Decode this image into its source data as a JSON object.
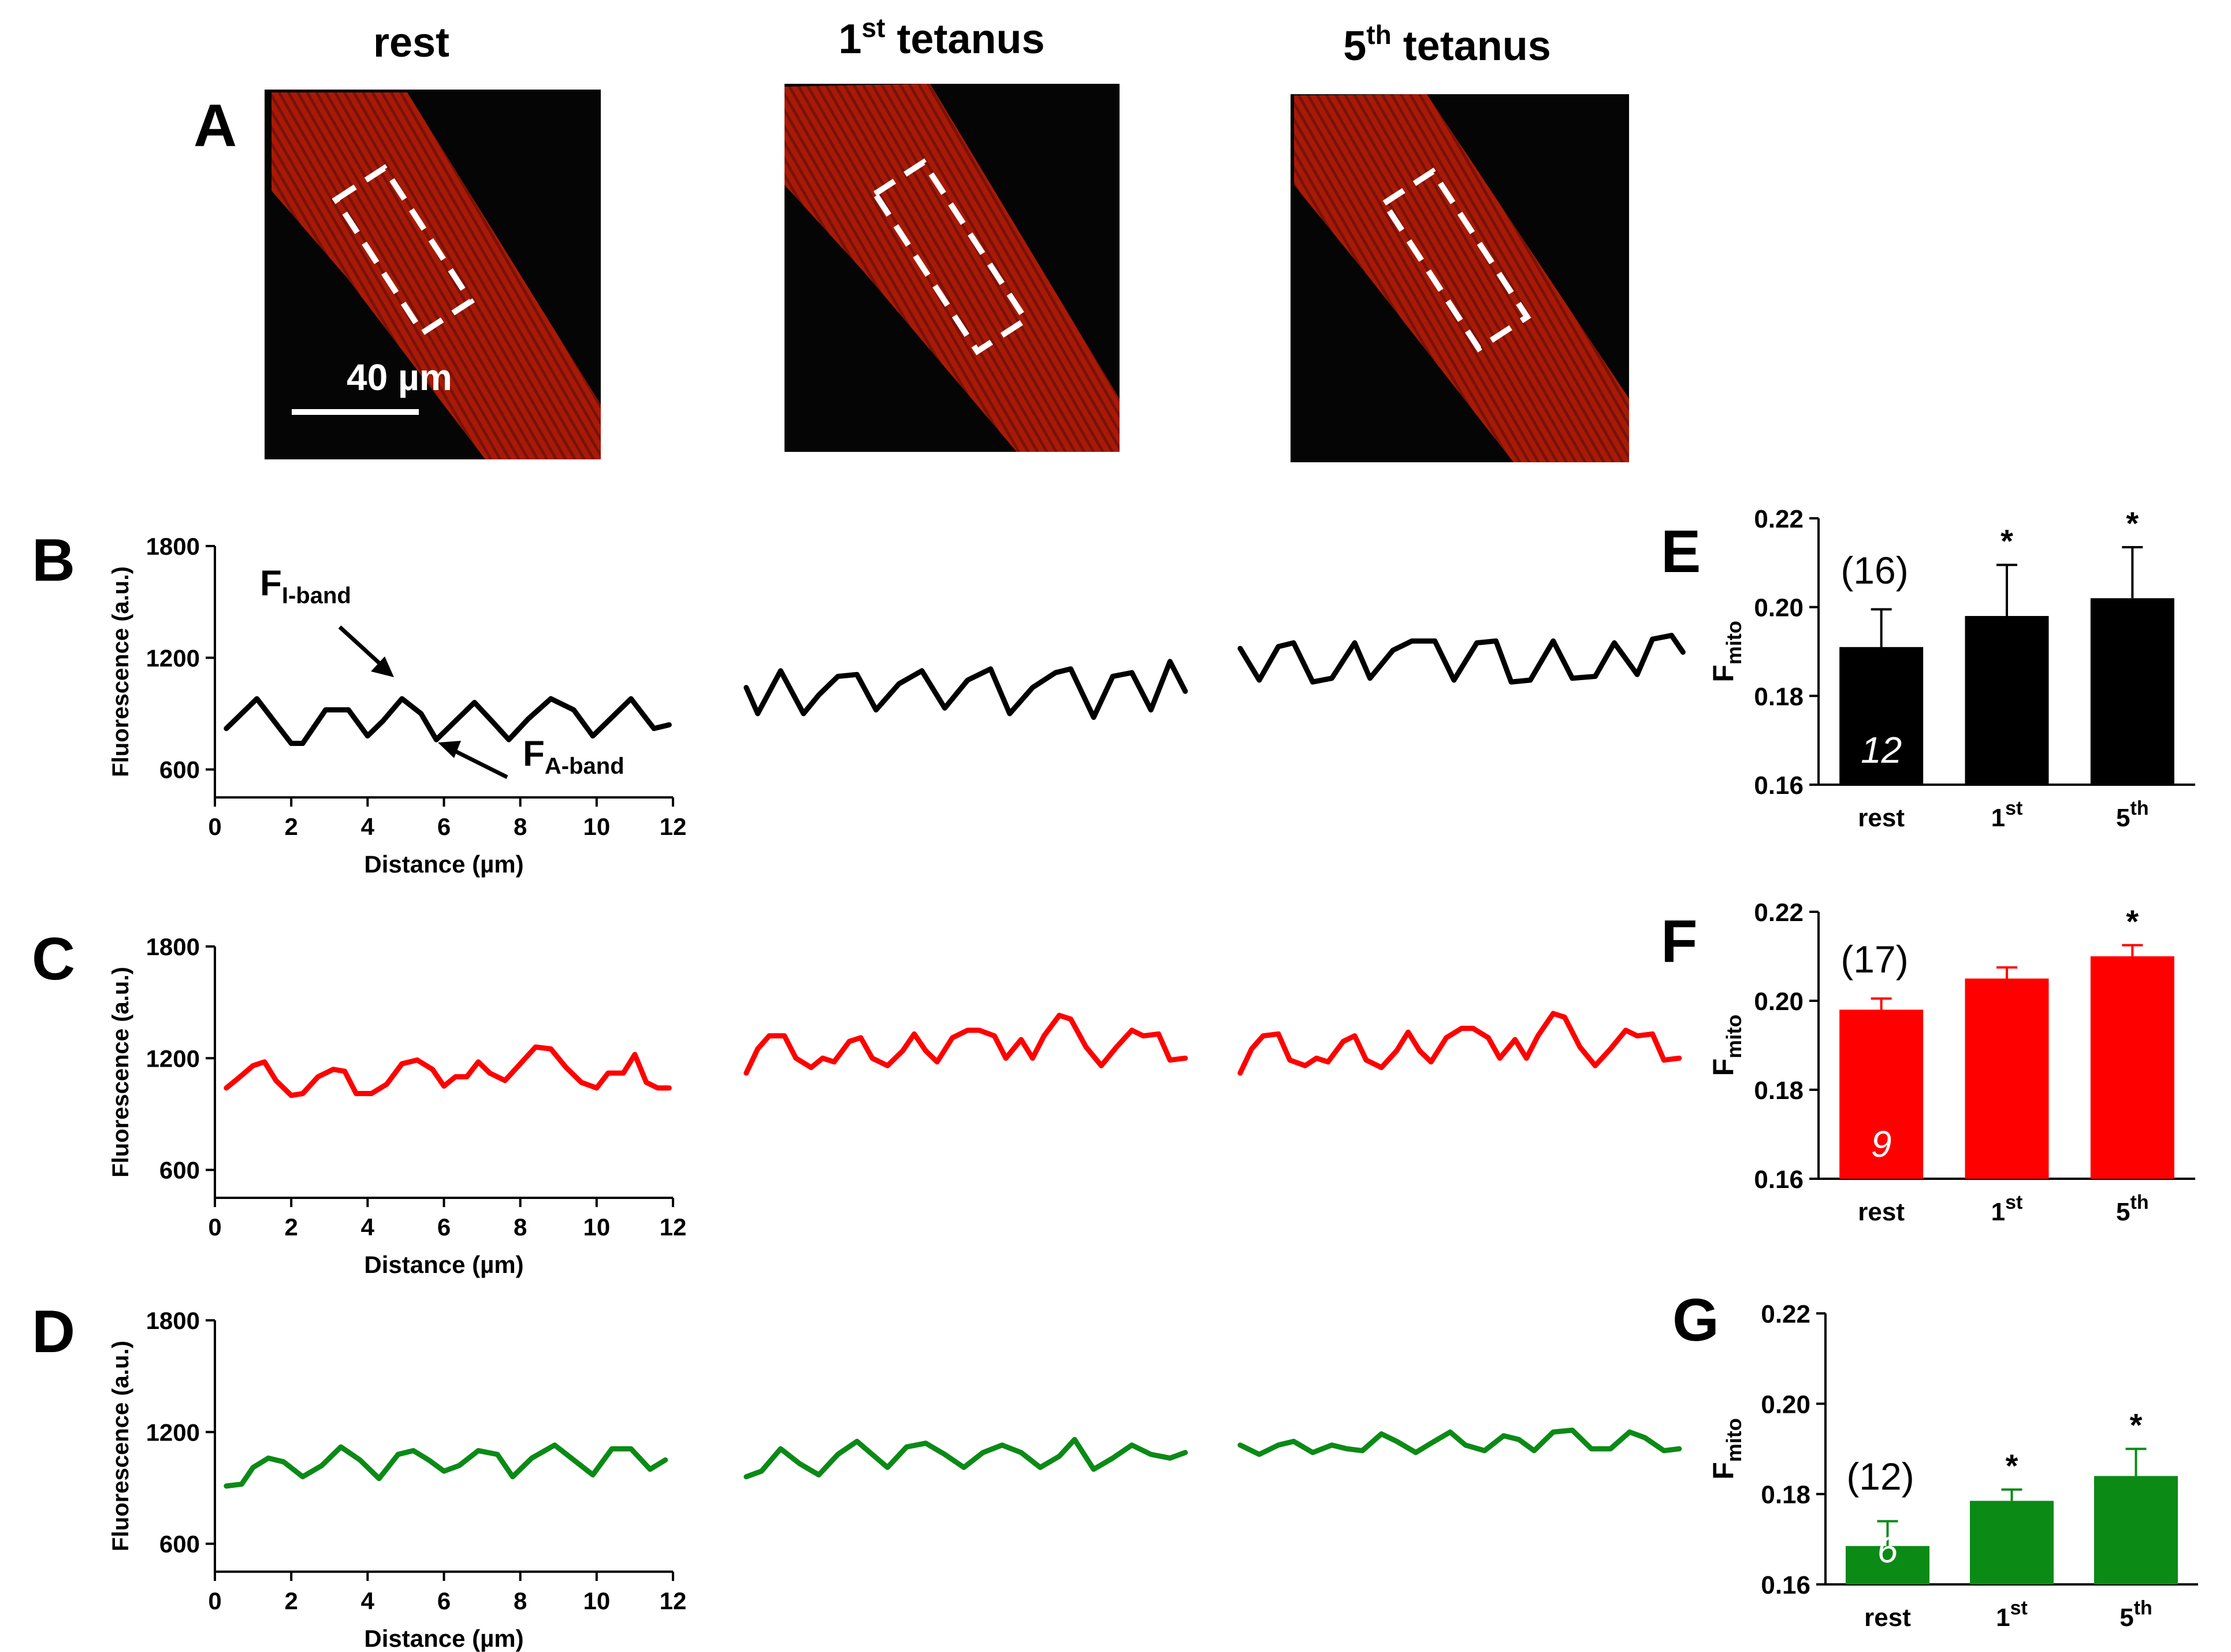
{
  "panel_labels": {
    "A": "A",
    "B": "B",
    "C": "C",
    "D": "D",
    "E": "E",
    "F": "F",
    "G": "G"
  },
  "images": [
    {
      "title": "rest",
      "title_sup": ""
    },
    {
      "title": "1",
      "title_sup": "st",
      "title_rest": " tetanus"
    },
    {
      "title": "5",
      "title_sup": "th",
      "title_rest": " tetanus"
    }
  ],
  "scale_bar_label": "40 µm",
  "annotations": {
    "i_band_main": "F",
    "i_band_sub": "I-band",
    "a_band_main": "F",
    "a_band_sub": "A-band"
  },
  "colors": {
    "black": "#000000",
    "red": "#ff0000",
    "green": "#0b8a16",
    "fiber": "#a81a08",
    "bg_dark": "#050505"
  },
  "chart_data": [
    {
      "type": "line",
      "panel": "B",
      "color": "black",
      "title": "",
      "xlabel": "Distance (µm)",
      "ylabel": "Fluorescence (a.u.)",
      "xlim": [
        0,
        12
      ],
      "ylim": [
        450,
        1800
      ],
      "xticks": [
        0,
        2,
        4,
        6,
        8,
        10,
        12
      ],
      "yticks": [
        600,
        1200,
        1800
      ],
      "series": [
        {
          "name": "rest",
          "x": [
            0.3,
            1.1,
            2.0,
            2.3,
            2.9,
            3.5,
            4.0,
            4.4,
            4.9,
            5.4,
            5.8,
            6.2,
            6.8,
            7.3,
            7.7,
            8.2,
            8.8,
            9.4,
            9.9,
            10.5,
            10.9,
            11.5,
            11.9
          ],
          "y": [
            820,
            980,
            740,
            740,
            920,
            920,
            780,
            860,
            980,
            900,
            760,
            840,
            960,
            850,
            760,
            870,
            980,
            920,
            780,
            900,
            980,
            820,
            840
          ]
        },
        {
          "name": "1st tetanus",
          "x": [
            0.3,
            0.6,
            1.2,
            1.8,
            2.2,
            2.7,
            3.2,
            3.7,
            4.3,
            4.9,
            5.5,
            6.1,
            6.7,
            7.2,
            7.8,
            8.4,
            8.8,
            9.4,
            9.9,
            10.4,
            10.9,
            11.4,
            11.8
          ],
          "y": [
            1040,
            900,
            1130,
            900,
            1000,
            1100,
            1110,
            920,
            1060,
            1130,
            930,
            1080,
            1140,
            900,
            1040,
            1120,
            1140,
            880,
            1100,
            1120,
            920,
            1180,
            1020
          ]
        },
        {
          "name": "5th tetanus",
          "x": [
            0.3,
            0.8,
            1.3,
            1.7,
            2.2,
            2.7,
            3.3,
            3.7,
            4.3,
            4.8,
            5.4,
            5.9,
            6.5,
            7.0,
            7.4,
            7.9,
            8.5,
            9.0,
            9.6,
            10.1,
            10.7,
            11.1,
            11.6,
            11.9
          ],
          "y": [
            1250,
            1080,
            1260,
            1280,
            1070,
            1090,
            1280,
            1090,
            1240,
            1290,
            1290,
            1080,
            1280,
            1290,
            1070,
            1080,
            1290,
            1090,
            1100,
            1280,
            1110,
            1300,
            1320,
            1230
          ]
        }
      ]
    },
    {
      "type": "line",
      "panel": "C",
      "color": "red",
      "title": "",
      "xlabel": "Distance (µm)",
      "ylabel": "Fluorescence (a.u.)",
      "xlim": [
        0,
        12
      ],
      "ylim": [
        450,
        1800
      ],
      "xticks": [
        0,
        2,
        4,
        6,
        8,
        10,
        12
      ],
      "yticks": [
        600,
        1200,
        1800
      ],
      "series": [
        {
          "name": "rest",
          "x": [
            0.3,
            0.6,
            1.0,
            1.3,
            1.6,
            2.0,
            2.3,
            2.7,
            3.1,
            3.4,
            3.7,
            4.1,
            4.5,
            4.9,
            5.3,
            5.7,
            6.0,
            6.3,
            6.6,
            6.9,
            7.2,
            7.6,
            8.0,
            8.4,
            8.8,
            9.2,
            9.6,
            10.0,
            10.3,
            10.7,
            11.0,
            11.3,
            11.6,
            11.9
          ],
          "y": [
            1040,
            1090,
            1160,
            1180,
            1080,
            1000,
            1010,
            1100,
            1140,
            1130,
            1010,
            1010,
            1060,
            1170,
            1190,
            1140,
            1050,
            1100,
            1100,
            1180,
            1120,
            1080,
            1170,
            1260,
            1250,
            1150,
            1070,
            1040,
            1120,
            1120,
            1220,
            1070,
            1040,
            1040
          ]
        },
        {
          "name": "1st tetanus",
          "x": [
            0.3,
            0.6,
            0.9,
            1.3,
            1.6,
            2.0,
            2.3,
            2.6,
            3.0,
            3.3,
            3.6,
            4.0,
            4.4,
            4.7,
            5.0,
            5.3,
            5.7,
            6.1,
            6.4,
            6.8,
            7.1,
            7.5,
            7.8,
            8.1,
            8.5,
            8.8,
            9.2,
            9.6,
            10.0,
            10.4,
            10.7,
            11.1,
            11.4,
            11.8
          ],
          "y": [
            1120,
            1250,
            1320,
            1320,
            1200,
            1150,
            1200,
            1180,
            1290,
            1310,
            1200,
            1160,
            1240,
            1330,
            1240,
            1180,
            1310,
            1350,
            1350,
            1320,
            1200,
            1300,
            1200,
            1320,
            1430,
            1410,
            1260,
            1160,
            1260,
            1350,
            1320,
            1330,
            1190,
            1200
          ]
        },
        {
          "name": "5th tetanus",
          "x": [
            0.3,
            0.6,
            0.9,
            1.3,
            1.6,
            2.0,
            2.3,
            2.6,
            3.0,
            3.3,
            3.6,
            4.0,
            4.4,
            4.7,
            5.0,
            5.3,
            5.7,
            6.1,
            6.4,
            6.8,
            7.1,
            7.5,
            7.8,
            8.1,
            8.5,
            8.8,
            9.2,
            9.6,
            10.0,
            10.4,
            10.7,
            11.1,
            11.4,
            11.8
          ],
          "y": [
            1120,
            1250,
            1320,
            1330,
            1190,
            1160,
            1200,
            1180,
            1290,
            1320,
            1190,
            1150,
            1240,
            1340,
            1240,
            1180,
            1310,
            1360,
            1360,
            1310,
            1200,
            1300,
            1200,
            1320,
            1440,
            1420,
            1260,
            1160,
            1250,
            1350,
            1320,
            1330,
            1190,
            1200
          ]
        }
      ]
    },
    {
      "type": "line",
      "panel": "D",
      "color": "green",
      "title": "",
      "xlabel": "Distance (µm)",
      "ylabel": "Fluorescence (a.u.)",
      "xlim": [
        0,
        12
      ],
      "ylim": [
        450,
        1800
      ],
      "xticks": [
        0,
        2,
        4,
        6,
        8,
        10,
        12
      ],
      "yticks": [
        600,
        1200,
        1800
      ],
      "series": [
        {
          "name": "rest",
          "x": [
            0.3,
            0.7,
            1.0,
            1.4,
            1.8,
            2.3,
            2.8,
            3.3,
            3.8,
            4.3,
            4.8,
            5.2,
            5.6,
            6.0,
            6.4,
            6.9,
            7.4,
            7.8,
            8.3,
            8.9,
            9.4,
            9.9,
            10.4,
            10.9,
            11.4,
            11.8
          ],
          "y": [
            910,
            920,
            1010,
            1060,
            1040,
            960,
            1020,
            1120,
            1050,
            950,
            1080,
            1100,
            1050,
            990,
            1020,
            1100,
            1080,
            960,
            1060,
            1130,
            1050,
            970,
            1110,
            1110,
            1000,
            1050
          ]
        },
        {
          "name": "1st tetanus",
          "x": [
            0.3,
            0.7,
            1.2,
            1.7,
            2.2,
            2.7,
            3.2,
            3.6,
            4.0,
            4.5,
            5.0,
            5.5,
            6.0,
            6.5,
            7.0,
            7.5,
            8.0,
            8.5,
            8.9,
            9.4,
            9.9,
            10.4,
            10.9,
            11.4,
            11.8
          ],
          "y": [
            960,
            990,
            1110,
            1030,
            970,
            1080,
            1150,
            1080,
            1010,
            1120,
            1140,
            1080,
            1010,
            1090,
            1130,
            1090,
            1010,
            1070,
            1160,
            1000,
            1060,
            1130,
            1080,
            1060,
            1090
          ]
        },
        {
          "name": "5th tetanus",
          "x": [
            0.3,
            0.8,
            1.3,
            1.7,
            2.2,
            2.7,
            3.1,
            3.5,
            4.0,
            4.4,
            4.9,
            5.3,
            5.8,
            6.2,
            6.7,
            7.2,
            7.6,
            8.0,
            8.5,
            9.0,
            9.5,
            10.0,
            10.5,
            10.9,
            11.4,
            11.8
          ],
          "y": [
            1130,
            1080,
            1130,
            1150,
            1090,
            1130,
            1110,
            1100,
            1190,
            1150,
            1090,
            1140,
            1200,
            1130,
            1100,
            1180,
            1160,
            1100,
            1200,
            1210,
            1110,
            1110,
            1200,
            1170,
            1100,
            1110
          ]
        }
      ]
    },
    {
      "type": "bar",
      "panel": "E",
      "color": "black",
      "title": "",
      "xlabel": "",
      "ylabel": "F",
      "ylabel_sub": "mito",
      "ylim": [
        0.16,
        0.22
      ],
      "yticks": [
        0.16,
        0.18,
        0.2,
        0.22
      ],
      "categories": [
        "rest",
        "1st",
        "5th"
      ],
      "category_main": [
        "rest",
        "1",
        "5"
      ],
      "category_sup": [
        "",
        "st",
        "th"
      ],
      "values": [
        0.191,
        0.198,
        0.202
      ],
      "errors": [
        0.0085,
        0.0115,
        0.0115
      ],
      "significance": [
        "",
        "*",
        "*"
      ],
      "n_cells": "(16)",
      "n_animals": "12"
    },
    {
      "type": "bar",
      "panel": "F",
      "color": "red",
      "title": "",
      "xlabel": "",
      "ylabel": "F",
      "ylabel_sub": "mito",
      "ylim": [
        0.16,
        0.22
      ],
      "yticks": [
        0.16,
        0.18,
        0.2,
        0.22
      ],
      "categories": [
        "rest",
        "1st",
        "5th"
      ],
      "category_main": [
        "rest",
        "1",
        "5"
      ],
      "category_sup": [
        "",
        "st",
        "th"
      ],
      "values": [
        0.198,
        0.205,
        0.21
      ],
      "errors": [
        0.0025,
        0.0025,
        0.0025
      ],
      "significance": [
        "",
        "",
        "*"
      ],
      "n_cells": "(17)",
      "n_animals": "9"
    },
    {
      "type": "bar",
      "panel": "G",
      "color": "green",
      "title": "",
      "xlabel": "",
      "ylabel": "F",
      "ylabel_sub": "mito",
      "ylim": [
        0.16,
        0.22
      ],
      "yticks": [
        0.16,
        0.18,
        0.2,
        0.22
      ],
      "categories": [
        "rest",
        "1st",
        "5th"
      ],
      "category_main": [
        "rest",
        "1",
        "5"
      ],
      "category_sup": [
        "",
        "st",
        "th"
      ],
      "values": [
        0.1685,
        0.1785,
        0.184
      ],
      "errors": [
        0.0055,
        0.0025,
        0.006
      ],
      "significance": [
        "",
        "*",
        "*"
      ],
      "n_cells": "(12)",
      "n_animals": "6"
    }
  ]
}
